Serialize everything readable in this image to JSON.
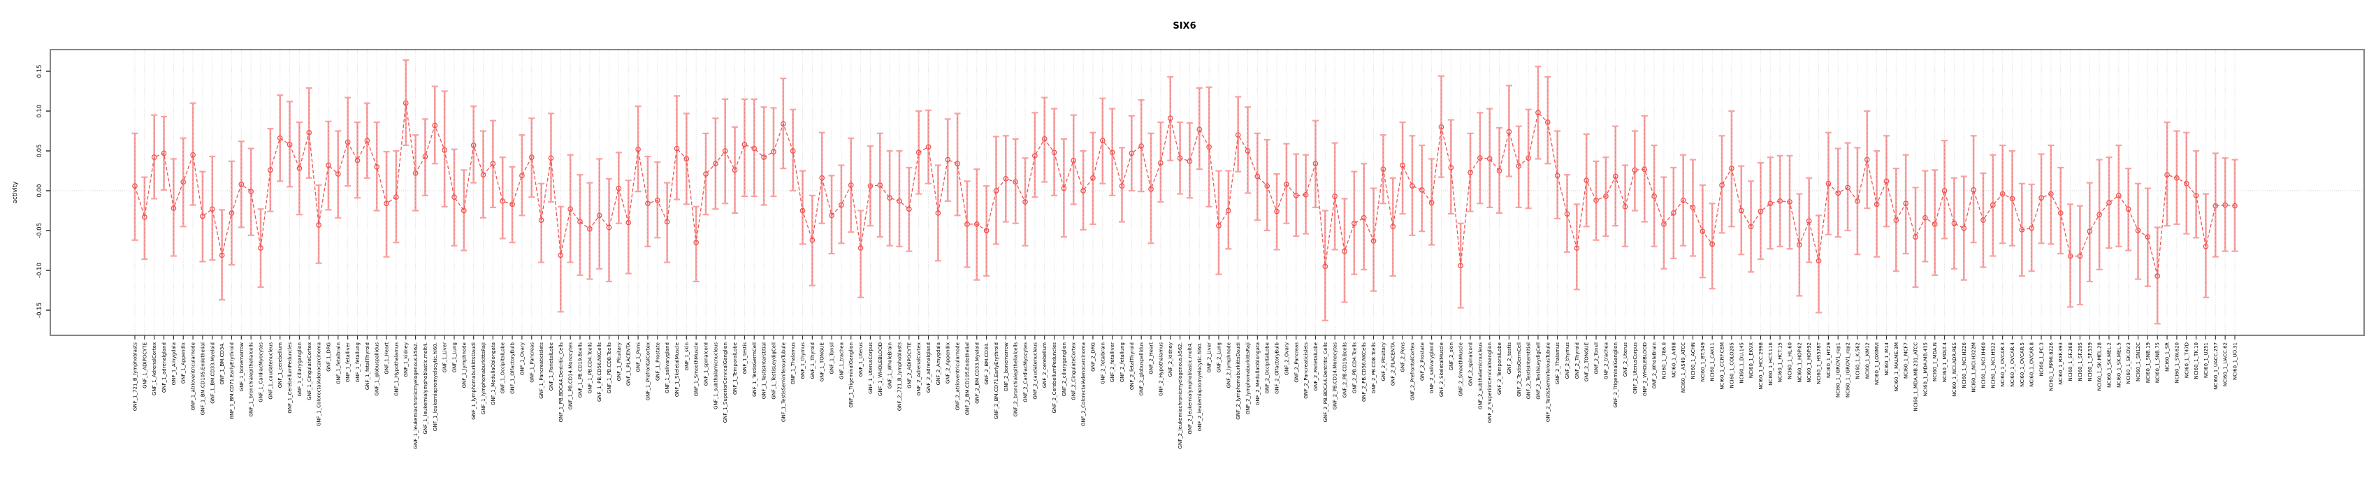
{
  "chart_data": {
    "type": "line",
    "subtype": "point-estimates-with-error-bars",
    "title": "SIX6",
    "xlabel": "",
    "ylabel": "activity",
    "ylim": [
      -0.18,
      0.175
    ],
    "yticks": [
      -0.15,
      -0.1,
      -0.05,
      0.0,
      0.05,
      0.1,
      0.15
    ],
    "ytick_labels": [
      "-0.15",
      "-0.10",
      "-0.05",
      "0.00",
      "0.05",
      "0.10",
      "0.15"
    ],
    "grid": {
      "vertical_per_category": true,
      "horizontal_zero_line": true,
      "style": "dotted-light-gray"
    },
    "legend_position": "none",
    "colors": {
      "point_and_line": "#ef5350",
      "error_bar": "#f7a2a2",
      "error_bar_core": "#ed7b7b",
      "gridline": "#dcdcdc",
      "zero_line": "#cfcfcf",
      "plot_border": "#848484",
      "text": "#000000",
      "background": "#ffffff"
    },
    "categories": [
      "GNF_1_721_B_lymphoblasts",
      "GNF_1_ADIPOCYTE",
      "GNF_1_AdrenalCortex",
      "GNF_1_adrenalgland",
      "GNF_1_Amygdala",
      "GNF_1_Appendix",
      "GNF_1_atrioventricularnode",
      "GNF_1_BM.CD105.Endothelial",
      "GNF_1_BM.CD33.Myeloid",
      "GNF_1_BM.CD34.",
      "GNF_1_BM.CD71.EarlyErythroid",
      "GNF_1_bonemarrow",
      "GNF_1_bronchialepithelialcells",
      "GNF_1_CardiacMyocytes",
      "GNF_1_caudatenucleus",
      "GNF_1_cerebellum",
      "GNF_1_CerebellumPeduncles",
      "GNF_1_ciliaryganglion",
      "GNF_1_CingulateCortex",
      "GNF_1_ColorectalAdenocarcinoma",
      "GNF_1_DRG",
      "GNF_1_fetalbrain",
      "GNF_1_fetalliver",
      "GNF_1_fetallung",
      "GNF_1_fetalThyroid",
      "GNF_1_globuspallidus",
      "GNF_1_Heart",
      "GNF_1_Hypothalamus",
      "GNF_1_kidney",
      "GNF_1_leukemiachronicmyelogenous.k562.",
      "GNF_1_leukemialymphoblastic.molt4.",
      "GNF_1_leukemiapromyelocytic.hl60.",
      "GNF_1_Liver",
      "GNF_1_Lung",
      "GNF_1_lymphnode",
      "GNF_1_lymphomaburkittsDaudi",
      "GNF_1_lymphomaburkittsRaji",
      "GNF_1_MedullaOblongata",
      "GNF_1_OccipitalLobe",
      "GNF_1_OlfactoryBulb",
      "GNF_1_Ovary",
      "GNF_1_Pancreas",
      "GNF_1_Pancreaticislets",
      "GNF_1_ParietalLobe",
      "GNF_1_PB.BDCA4.Dentritic_Cells",
      "GNF_1_PB.CD14.Monocytes",
      "GNF_1_PB.CD19.Bcells",
      "GNF_1_PB.CD4.Tcells",
      "GNF_1_PB.CD56.NKCells",
      "GNF_1_PB.CD8.Tcells",
      "GNF_1_Pituitary",
      "GNF_1_PLACENTA",
      "GNF_1_Pons",
      "GNF_1_PrefrontalCortex",
      "GNF_1_Prostate",
      "GNF_1_salivarygland",
      "GNF_1_SkeletalMuscle",
      "GNF_1_skin",
      "GNF_1_SmoothMuscle",
      "GNF_1_spinalcord",
      "GNF_1_subthalamicnucleus",
      "GNF_1_SuperiorCervicalGanglion",
      "GNF_1_TemporalLobe",
      "GNF_1_testis",
      "GNF_1_TestisGermCell",
      "GNF_1_TestisInterstitial",
      "GNF_1_TestisLeydigCell",
      "GNF_1_TestisSeminiferousTubule",
      "GNF_1_Thalamus",
      "GNF_1_thymus",
      "GNF_1_Thyroid",
      "GNF_1_TONGUE",
      "GNF_1_Tonsil",
      "GNF_1_trachea",
      "GNF_1_TrigeminalGanglion",
      "GNF_1_Uterus",
      "GNF_1_UterusCorpus",
      "GNF_1_WHOLEBLOOD",
      "GNF_1_WholeBrain",
      "GNF_2_721_B_lymphoblasts",
      "GNF_2_ADIPOCYTE",
      "GNF_2_AdrenalCortex",
      "GNF_2_adrenalgland",
      "GNF_2_Amygdala",
      "GNF_2_Appendix",
      "GNF_2_atrioventricularnode",
      "GNF_2_BM.CD105.Endothelial",
      "GNF_2_BM.CD33.Myeloid",
      "GNF_2_BM.CD34.",
      "GNF_2_BM.CD71.EarlyErythroid",
      "GNF_2_bonemarrow",
      "GNF_2_bronchialepithelialcells",
      "GNF_2_CardiacMyocytes",
      "GNF_2_caudatenucleus",
      "GNF_2_cerebellum",
      "GNF_2_CerebellumPeduncles",
      "GNF_2_ciliaryganglion",
      "GNF_2_CingulateCortex",
      "GNF_2_ColorectalAdenocarcinoma",
      "GNF_2_DRG",
      "GNF_2_fetalbrain",
      "GNF_2_fetalliver",
      "GNF_2_fetallung",
      "GNF_2_fetalThyroid",
      "GNF_2_globuspallidus",
      "GNF_2_Heart",
      "GNF_2_Hypothalamus",
      "GNF_2_kidney",
      "GNF_2_leukemiachronicmyelogenous.k562.",
      "GNF_2_leukemialymphoblastic.molt4.",
      "GNF_2_leukemiapromyelocytic.hl60.",
      "GNF_2_Liver",
      "GNF_2_Lung",
      "GNF_2_lymphnode",
      "GNF_2_lymphomaburkittsDaudi",
      "GNF_2_lymphomaburkittsRaji",
      "GNF_2_MedullaOblongata",
      "GNF_2_OccipitalLobe",
      "GNF_2_OlfactoryBulb",
      "GNF_2_Ovary",
      "GNF_2_Pancreas",
      "GNF_2_Pancreaticislets",
      "GNF_2_ParietalLobe",
      "GNF_2_PB.BDCA4.Dentritic_Cells",
      "GNF_2_PB.CD14.Monocytes",
      "GNF_2_PB.CD19.Bcells",
      "GNF_2_PB.CD4.Tcells",
      "GNF_2_PB.CD56.NKCells",
      "GNF_2_PB.CD8.Tcells",
      "GNF_2_Pituitary",
      "GNF_2_PLACENTA",
      "GNF_2_Pons",
      "GNF_2_PrefrontalCortex",
      "GNF_2_Prostate",
      "GNF_2_salivarygland",
      "GNF_2_SkeletalMuscle",
      "GNF_2_skin",
      "GNF_2_SmoothMuscle",
      "GNF_2_spinalcord",
      "GNF_2_subthalamicnucleus",
      "GNF_2_SuperiorCervicalGanglion",
      "GNF_2_TemporalLobe",
      "GNF_2_testis",
      "GNF_2_TestisGermCell",
      "GNF_2_TestisInterstitial",
      "GNF_2_TestisLeydigCell",
      "GNF_2_TestisSeminiferousTubule",
      "GNF_2_Thalamus",
      "GNF_2_thymus",
      "GNF_2_Thyroid",
      "GNF_2_TONGUE",
      "GNF_2_Tonsil",
      "GNF_2_trachea",
      "GNF_2_TrigeminalGanglion",
      "GNF_2_Uterus",
      "GNF_2_UterusCorpus",
      "GNF_2_WHOLEBLOOD",
      "GNF_2_WholeBrain",
      "NCI60_1_786.0",
      "NCI60_1_A498",
      "NCI60_1_A549_ATCC",
      "NCI60_1_ACHN",
      "NCI60_1_BT.549",
      "NCI60_1_CAKI.1",
      "NCI60_1_CCRF.CEM",
      "NCI60_1_COLO205",
      "NCI60_1_DU.145",
      "NCI60_1_EKVX",
      "NCI60_1_HCC.2998",
      "NCI60_1_HCT.116",
      "NCI60_1_HCT.15",
      "NCI60_1_HL.60",
      "NCI60_1_HOP.62",
      "NCI60_1_HOP.92",
      "NCI60_1_HS578T",
      "NCI60_1_HT29",
      "NCI60_1_IGROV1_rep1",
      "NCI60_1_IGROV1_rep2",
      "NCI60_1_K.562",
      "NCI60_1_KM12",
      "NCI60_1_LOXIMVI",
      "NCI60_1_M14",
      "NCI60_1_MALME.3M",
      "NCI60_1_MCF7",
      "NCI60_1_MDA.MB.231_ATCC",
      "NCI60_1_MDA.MB.435",
      "NCI60_1_MDA.N",
      "NCI60_1_MOLT.4",
      "NCI60_1_NCI.ADR.RES",
      "NCI60_1_NCI.H226",
      "NCI60_1_NCI.H322M",
      "NCI60_1_NCI.H460",
      "NCI60_1_NCI.H522",
      "NCI60_1_OVCAR.3",
      "NCI60_1_OVCAR.4",
      "NCI60_1_OVCAR.5",
      "NCI60_1_OVCAR.8",
      "NCI60_1_PC.3",
      "NCI60_1_RPMI.8226",
      "NCI60_1_RXF.393",
      "NCI60_1_SF.268",
      "NCI60_1_SF.295",
      "NCI60_1_SF.539",
      "NCI60_1_SK.MEL.28",
      "NCI60_1_SK.MEL.2",
      "NCI60_1_SK.MEL.5",
      "NCI60_1_SK.OV.3",
      "NCI60_1_SN12C",
      "NCI60_1_SNB.19",
      "NCI60_1_SNB.75",
      "NCI60_1_SR",
      "NCI60_1_SW.620",
      "NCI60_1_T47D",
      "NCI60_1_TK.10",
      "NCI60_1_U251",
      "NCI60_1_UACC.257",
      "NCI60_1_UACC.62",
      "NCI60_1_UO.31"
    ],
    "series": [
      {
        "name": "mean",
        "values": [
          0.006,
          -0.033,
          0.042,
          0.047,
          -0.022,
          0.011,
          0.045,
          -0.032,
          -0.023,
          -0.081,
          -0.028,
          0.008,
          -0.001,
          -0.072,
          0.026,
          0.066,
          0.058,
          0.028,
          0.073,
          -0.043,
          0.032,
          0.021,
          0.061,
          0.038,
          0.063,
          0.03,
          -0.016,
          -0.008,
          0.11,
          0.022,
          0.043,
          0.082,
          0.051,
          -0.008,
          -0.025,
          0.057,
          0.02,
          0.034,
          -0.013,
          -0.017,
          0.019,
          0.042,
          -0.037,
          0.041,
          -0.081,
          -0.023,
          -0.039,
          -0.048,
          -0.031,
          -0.046,
          0.003,
          -0.04,
          0.052,
          -0.016,
          -0.012,
          -0.039,
          0.053,
          0.04,
          -0.065,
          0.021,
          0.034,
          0.05,
          0.026,
          0.058,
          0.053,
          0.042,
          0.049,
          0.084,
          0.05,
          -0.025,
          -0.062,
          0.016,
          -0.031,
          -0.018,
          0.007,
          -0.072,
          0.006,
          0.007,
          -0.009,
          -0.013,
          -0.023,
          0.048,
          0.055,
          -0.028,
          0.039,
          0.034,
          -0.042,
          -0.042,
          -0.05,
          0.0,
          0.015,
          0.011,
          -0.014,
          0.044,
          0.065,
          0.048,
          0.003,
          0.038,
          0.0,
          0.016,
          0.063,
          0.048,
          0.006,
          0.047,
          0.056,
          0.002,
          0.035,
          0.091,
          0.041,
          0.037,
          0.077,
          0.055,
          -0.044,
          -0.025,
          0.07,
          0.05,
          0.018,
          0.006,
          -0.026,
          0.008,
          -0.006,
          -0.005,
          0.034,
          -0.095,
          -0.007,
          -0.076,
          -0.041,
          -0.034,
          -0.063,
          0.027,
          -0.045,
          0.032,
          0.006,
          0.001,
          -0.015,
          0.08,
          0.029,
          -0.094,
          0.023,
          0.041,
          0.04,
          0.025,
          0.074,
          0.031,
          0.041,
          0.098,
          0.086,
          0.019,
          -0.029,
          -0.072,
          0.013,
          -0.012,
          -0.007,
          0.018,
          -0.02,
          0.026,
          0.027,
          -0.007,
          -0.042,
          -0.028,
          -0.012,
          -0.021,
          -0.051,
          -0.067,
          0.007,
          0.028,
          -0.025,
          -0.045,
          -0.026,
          -0.016,
          -0.013,
          -0.014,
          -0.068,
          -0.038,
          -0.088,
          0.009,
          -0.003,
          0.004,
          -0.013,
          0.039,
          -0.017,
          0.012,
          -0.037,
          -0.016,
          -0.058,
          -0.034,
          -0.042,
          0.0,
          -0.041,
          -0.047,
          0.001,
          -0.037,
          -0.018,
          -0.004,
          -0.01,
          -0.049,
          -0.047,
          -0.009,
          -0.004,
          -0.028,
          -0.082,
          -0.082,
          -0.051,
          -0.03,
          -0.015,
          -0.006,
          -0.023,
          -0.05,
          -0.058,
          -0.107,
          0.02,
          0.016,
          0.009,
          -0.006,
          -0.07,
          -0.019,
          -0.018,
          -0.019
        ]
      },
      {
        "name": "ci_lower",
        "values": [
          -0.062,
          -0.086,
          -0.01,
          0.001,
          -0.082,
          -0.045,
          -0.018,
          -0.089,
          -0.087,
          -0.137,
          -0.093,
          -0.046,
          -0.056,
          -0.121,
          -0.026,
          0.012,
          0.005,
          -0.03,
          0.016,
          -0.091,
          -0.024,
          -0.034,
          0.006,
          -0.009,
          0.016,
          -0.025,
          -0.083,
          -0.065,
          0.057,
          -0.025,
          -0.006,
          0.034,
          -0.02,
          -0.069,
          -0.075,
          0.01,
          -0.034,
          -0.021,
          -0.06,
          -0.065,
          -0.031,
          -0.008,
          -0.09,
          -0.014,
          -0.152,
          -0.09,
          -0.106,
          -0.111,
          -0.098,
          -0.114,
          -0.041,
          -0.104,
          -0.001,
          -0.07,
          -0.059,
          -0.09,
          -0.011,
          -0.017,
          -0.114,
          -0.03,
          -0.023,
          -0.016,
          -0.028,
          -0.007,
          -0.007,
          -0.018,
          -0.007,
          0.028,
          0.0,
          -0.067,
          -0.119,
          -0.041,
          -0.079,
          -0.066,
          -0.052,
          -0.134,
          -0.044,
          -0.058,
          -0.069,
          -0.07,
          -0.076,
          -0.004,
          0.009,
          -0.088,
          -0.013,
          -0.031,
          -0.096,
          -0.112,
          -0.107,
          -0.067,
          -0.039,
          -0.041,
          -0.069,
          -0.008,
          0.011,
          -0.006,
          -0.058,
          -0.017,
          -0.049,
          -0.042,
          0.009,
          -0.006,
          -0.039,
          0.0,
          -0.001,
          -0.066,
          -0.014,
          0.038,
          -0.004,
          -0.009,
          0.027,
          -0.02,
          -0.105,
          -0.073,
          0.024,
          -0.003,
          -0.037,
          -0.05,
          -0.074,
          -0.041,
          -0.057,
          -0.054,
          -0.021,
          -0.163,
          -0.074,
          -0.14,
          -0.105,
          -0.099,
          -0.126,
          -0.016,
          -0.107,
          -0.029,
          -0.056,
          -0.051,
          -0.068,
          0.017,
          -0.029,
          -0.147,
          -0.026,
          -0.016,
          -0.021,
          -0.028,
          0.018,
          -0.021,
          -0.022,
          0.04,
          0.034,
          -0.035,
          -0.077,
          -0.124,
          -0.045,
          -0.062,
          -0.057,
          -0.044,
          -0.07,
          -0.025,
          -0.039,
          -0.07,
          -0.098,
          -0.085,
          -0.069,
          -0.082,
          -0.109,
          -0.123,
          -0.053,
          -0.045,
          -0.08,
          -0.102,
          -0.086,
          -0.073,
          -0.07,
          -0.073,
          -0.132,
          -0.09,
          -0.153,
          -0.055,
          -0.058,
          -0.05,
          -0.08,
          -0.022,
          -0.083,
          -0.045,
          -0.101,
          -0.079,
          -0.121,
          -0.089,
          -0.106,
          -0.06,
          -0.098,
          -0.112,
          -0.065,
          -0.096,
          -0.082,
          -0.066,
          -0.069,
          -0.107,
          -0.101,
          -0.066,
          -0.067,
          -0.079,
          -0.146,
          -0.143,
          -0.114,
          -0.099,
          -0.072,
          -0.07,
          -0.075,
          -0.111,
          -0.12,
          -0.167,
          -0.044,
          -0.042,
          -0.054,
          -0.059,
          -0.134,
          -0.083,
          -0.076,
          -0.076
        ]
      },
      {
        "name": "ci_upper",
        "values": [
          0.072,
          0.017,
          0.095,
          0.093,
          0.04,
          0.066,
          0.11,
          0.024,
          0.043,
          -0.024,
          0.037,
          0.062,
          0.053,
          -0.023,
          0.078,
          0.12,
          0.112,
          0.086,
          0.129,
          0.007,
          0.087,
          0.075,
          0.117,
          0.086,
          0.11,
          0.086,
          0.049,
          0.05,
          0.164,
          0.07,
          0.09,
          0.131,
          0.125,
          0.052,
          0.026,
          0.106,
          0.075,
          0.088,
          0.042,
          0.03,
          0.07,
          0.091,
          0.009,
          0.097,
          -0.02,
          0.045,
          0.02,
          0.01,
          0.04,
          0.015,
          0.048,
          0.013,
          0.106,
          0.043,
          0.036,
          0.01,
          0.119,
          0.097,
          -0.02,
          0.072,
          0.091,
          0.115,
          0.08,
          0.115,
          0.115,
          0.105,
          0.104,
          0.141,
          0.102,
          0.025,
          -0.006,
          0.073,
          0.019,
          0.032,
          0.066,
          -0.025,
          0.056,
          0.072,
          0.05,
          0.05,
          0.029,
          0.1,
          0.101,
          0.032,
          0.09,
          0.097,
          0.012,
          0.027,
          0.006,
          0.068,
          0.069,
          0.065,
          0.041,
          0.098,
          0.117,
          0.103,
          0.065,
          0.095,
          0.05,
          0.073,
          0.116,
          0.103,
          0.054,
          0.094,
          0.114,
          0.072,
          0.086,
          0.143,
          0.086,
          0.085,
          0.129,
          0.13,
          0.025,
          0.025,
          0.118,
          0.105,
          0.072,
          0.064,
          0.021,
          0.059,
          0.046,
          0.045,
          0.088,
          -0.025,
          0.06,
          -0.01,
          0.024,
          0.034,
          0.003,
          0.07,
          0.016,
          0.086,
          0.069,
          0.057,
          0.04,
          0.144,
          0.089,
          -0.041,
          0.072,
          0.098,
          0.103,
          0.079,
          0.132,
          0.081,
          0.102,
          0.156,
          0.143,
          0.075,
          0.02,
          -0.017,
          0.071,
          0.037,
          0.042,
          0.081,
          0.032,
          0.075,
          0.094,
          0.057,
          0.017,
          0.029,
          0.045,
          0.039,
          0.007,
          -0.016,
          0.069,
          0.1,
          0.031,
          0.012,
          0.035,
          0.042,
          0.044,
          0.044,
          -0.004,
          0.016,
          -0.031,
          0.073,
          0.053,
          0.06,
          0.054,
          0.1,
          0.05,
          0.069,
          0.028,
          0.045,
          0.004,
          0.025,
          0.026,
          0.063,
          0.016,
          0.018,
          0.069,
          0.022,
          0.045,
          0.057,
          0.05,
          0.009,
          0.008,
          0.046,
          0.057,
          0.029,
          -0.017,
          -0.019,
          0.01,
          0.039,
          0.042,
          0.057,
          0.028,
          0.009,
          0.003,
          -0.046,
          0.086,
          0.075,
          0.073,
          0.05,
          -0.004,
          0.047,
          0.041,
          0.039
        ]
      }
    ]
  }
}
